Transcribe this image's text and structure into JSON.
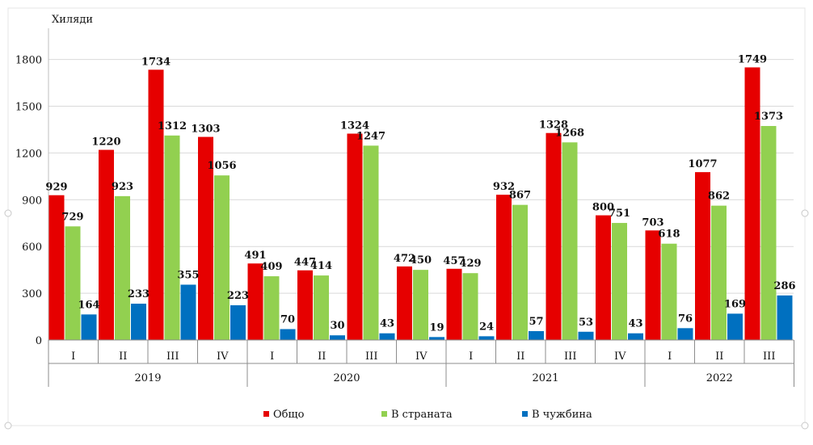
{
  "chart_data": {
    "type": "bar",
    "ylabel": "Хиляди",
    "ylim": [
      0,
      2000
    ],
    "yticks": [
      0,
      300,
      600,
      900,
      1200,
      1500,
      1800
    ],
    "grid": true,
    "legend_position": "bottom",
    "years": [
      {
        "label": "2019",
        "quarters": [
          "I",
          "II",
          "III",
          "IV"
        ]
      },
      {
        "label": "2020",
        "quarters": [
          "I",
          "II",
          "III",
          "IV"
        ]
      },
      {
        "label": "2021",
        "quarters": [
          "I",
          "II",
          "III",
          "IV"
        ]
      },
      {
        "label": "2022",
        "quarters": [
          "I",
          "II",
          "III"
        ]
      }
    ],
    "categories": [
      "2019 I",
      "2019 II",
      "2019 III",
      "2019 IV",
      "2020 I",
      "2020 II",
      "2020 III",
      "2020 IV",
      "2021 I",
      "2021 II",
      "2021 III",
      "2021 IV",
      "2022 I",
      "2022 II",
      "2022 III"
    ],
    "series": [
      {
        "name": "Общо",
        "color": "#e60000",
        "values": [
          929,
          1220,
          1734,
          1303,
          491,
          447,
          1324,
          472,
          457,
          932,
          1328,
          800,
          703,
          1077,
          1749
        ]
      },
      {
        "name": "В страната",
        "color": "#92d050",
        "values": [
          729,
          923,
          1312,
          1056,
          409,
          414,
          1247,
          450,
          429,
          867,
          1268,
          751,
          618,
          862,
          1373
        ]
      },
      {
        "name": "В чужбина",
        "color": "#0070c0",
        "values": [
          164,
          233,
          355,
          223,
          70,
          30,
          43,
          19,
          24,
          57,
          53,
          43,
          76,
          169,
          286
        ]
      }
    ]
  }
}
